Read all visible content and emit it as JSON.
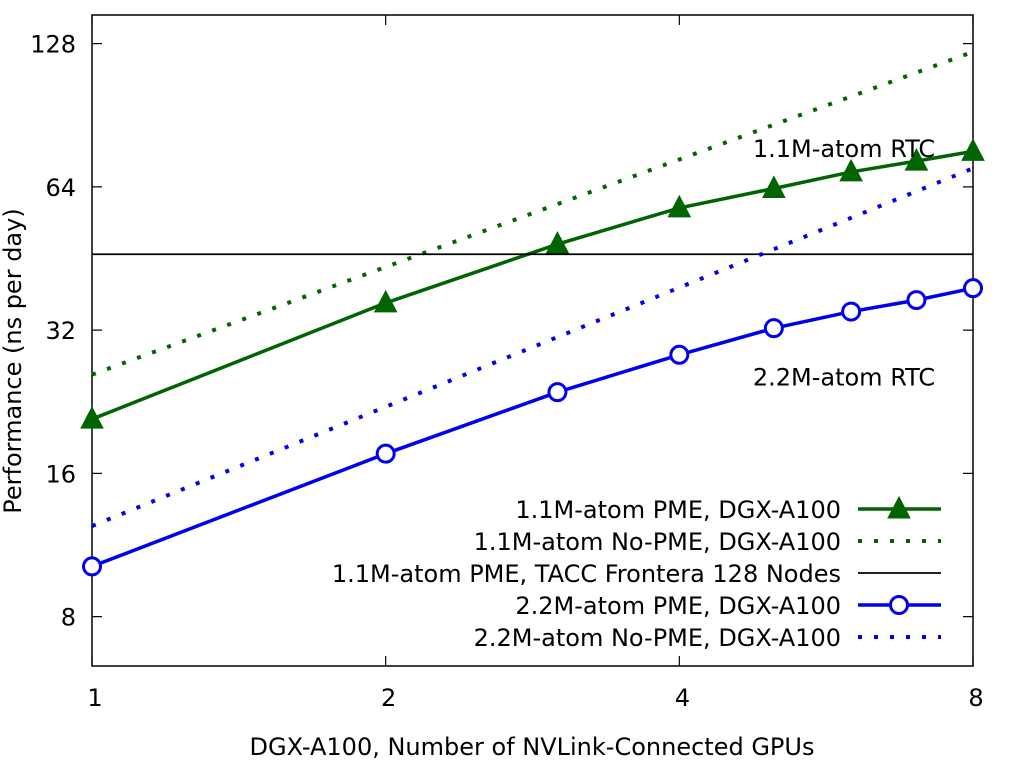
{
  "chart_data": {
    "type": "line",
    "title": "",
    "xlabel": "DGX-A100, Number of NVLink-Connected GPUs",
    "ylabel": "Performance (ns per day)",
    "x_scale": "log2",
    "y_scale": "log2",
    "xlim": [
      1,
      8
    ],
    "ylim": [
      6.3,
      147
    ],
    "x_ticks": [
      1,
      2,
      4,
      8
    ],
    "x_tick_labels": [
      "1",
      "2",
      "4",
      "8"
    ],
    "y_ticks": [
      8,
      16,
      32,
      64,
      128
    ],
    "y_tick_labels": [
      "8",
      "16",
      "32",
      "64",
      "128"
    ],
    "grid": false,
    "legend_position": "bottom-right",
    "annotations": [
      {
        "text": "1.1M-atom RTC",
        "x": 5.9,
        "y": 74
      },
      {
        "text": "2.2M-atom RTC",
        "x": 5.9,
        "y": 24.5
      }
    ],
    "series": [
      {
        "name": "1.1M-atom PME, DGX-A100",
        "style": "solid-triangle",
        "color": "#006400",
        "x": [
          1,
          2,
          3,
          4,
          5,
          6,
          7,
          8
        ],
        "y": [
          20.8,
          36.5,
          48.5,
          57.8,
          63.5,
          68.8,
          72.5,
          76.0
        ]
      },
      {
        "name": "1.1M-atom No-PME, DGX-A100",
        "style": "dotted",
        "color": "#006400",
        "x": [
          1,
          8
        ],
        "y": [
          25.8,
          123.0
        ]
      },
      {
        "name": "1.1M-atom PME, TACC Frontera 128 Nodes",
        "style": "solid-thin",
        "color": "#000000",
        "x": [
          1,
          8
        ],
        "y": [
          46.2,
          46.2
        ]
      },
      {
        "name": "2.2M-atom PME, DGX-A100",
        "style": "solid-circle",
        "color": "#0000ee",
        "x": [
          1,
          2,
          3,
          4,
          5,
          6,
          7,
          8
        ],
        "y": [
          10.2,
          17.6,
          23.7,
          28.4,
          32.3,
          35.0,
          37.0,
          39.2
        ]
      },
      {
        "name": "2.2M-atom No-PME, DGX-A100",
        "style": "dotted",
        "color": "#0000ee",
        "x": [
          1,
          8
        ],
        "y": [
          12.4,
          70.0
        ]
      }
    ]
  }
}
